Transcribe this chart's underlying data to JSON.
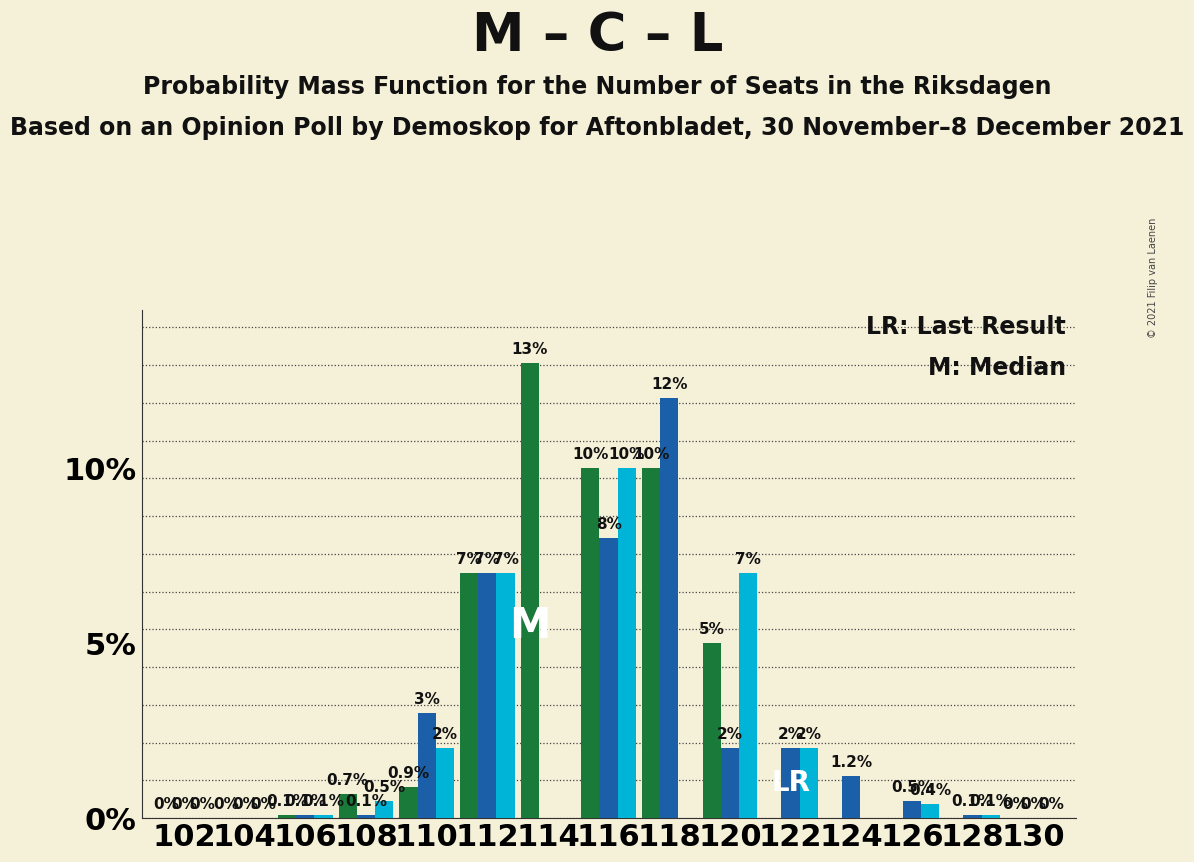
{
  "title": "M – C – L",
  "subtitle": "Probability Mass Function for the Number of Seats in the Riksdagen",
  "subtitle2": "Based on an Opinion Poll by Demoskop for Aftonbladet, 30 November–8 December 2021",
  "copyright": "© 2021 Filip van Laenen",
  "legend_lr": "LR: Last Result",
  "legend_m": "M: Median",
  "background_color": "#f5f0d8",
  "seats": [
    102,
    104,
    106,
    108,
    110,
    112,
    114,
    116,
    118,
    120,
    122,
    124,
    126,
    128,
    130
  ],
  "dark_blue": [
    0.0,
    0.0,
    0.1,
    0.1,
    3.0,
    7.0,
    0.0,
    8.0,
    12.0,
    2.0,
    2.0,
    1.2,
    0.5,
    0.1,
    0.0
  ],
  "cyan": [
    0.0,
    0.0,
    0.1,
    0.5,
    2.0,
    7.0,
    0.0,
    10.0,
    0.0,
    7.0,
    2.0,
    0.0,
    0.4,
    0.1,
    0.0
  ],
  "green": [
    0.0,
    0.0,
    0.1,
    0.7,
    0.9,
    7.0,
    13.0,
    10.0,
    10.0,
    5.0,
    0.0,
    0.0,
    0.0,
    0.0,
    0.0
  ],
  "show_zero_label": [
    true,
    true,
    true,
    false,
    false,
    false,
    false,
    false,
    false,
    false,
    false,
    false,
    false,
    false,
    true
  ],
  "bar_width": 0.3,
  "ylim": [
    0,
    14.5
  ],
  "yticks": [
    0,
    5,
    10
  ],
  "ytick_labels": [
    "0%",
    "5%",
    "10%"
  ],
  "grid_color": "#444444",
  "bar_color_dark_blue": "#1a5fa8",
  "bar_color_cyan": "#00b4d8",
  "bar_color_green": "#1a7a3a",
  "median_seat": 114,
  "lr_seat": 122,
  "title_fontsize": 38,
  "subtitle_fontsize": 17,
  "subtitle2_fontsize": 17,
  "annotation_fontsize": 11,
  "ytick_fontsize": 22,
  "xtick_fontsize": 22,
  "legend_fontsize": 17,
  "m_label_fontsize": 30,
  "lr_label_fontsize": 20,
  "num_gridlines": 14
}
